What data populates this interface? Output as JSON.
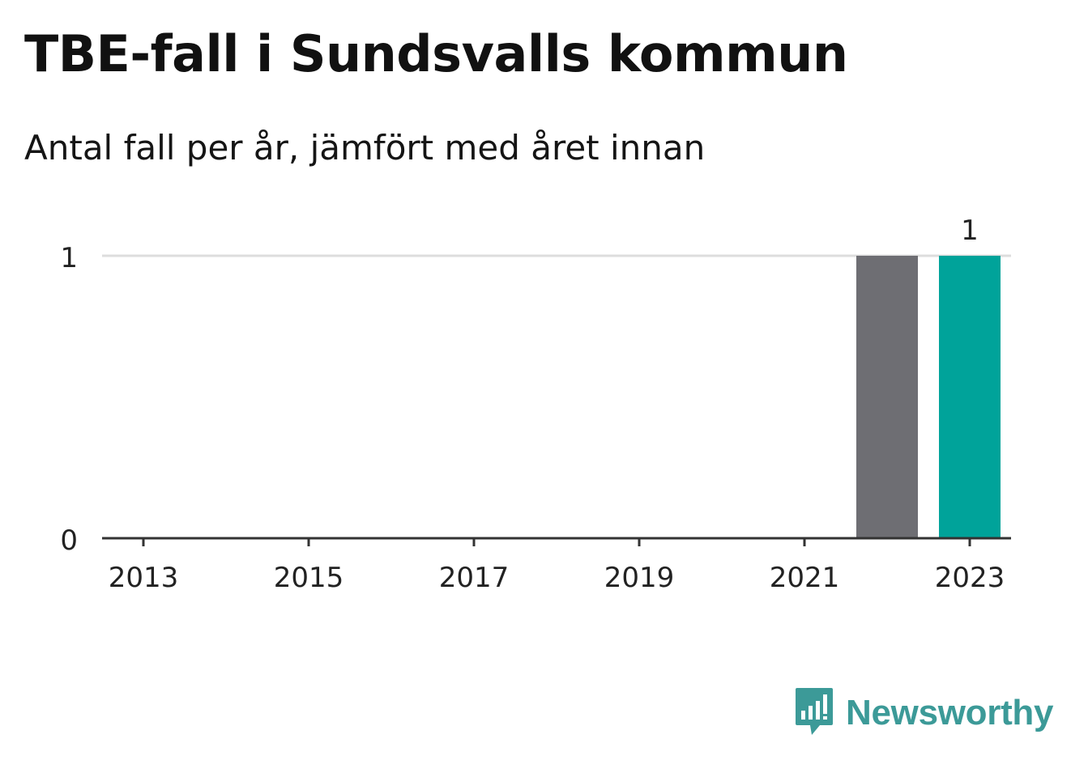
{
  "title": "TBE-fall i Sundsvalls kommun",
  "subtitle": "Antal fall per år, jämfört med året innan",
  "brand": {
    "name": "Newsworthy",
    "color": "#3c9a98"
  },
  "colors": {
    "previous_year": "#6e6e73",
    "current_year": "#00a39a",
    "gridline": "#dddddd",
    "axis": "#333333"
  },
  "chart_data": {
    "type": "bar",
    "categories": [
      "2013",
      "2014",
      "2015",
      "2016",
      "2017",
      "2018",
      "2019",
      "2020",
      "2021",
      "2022",
      "2023"
    ],
    "x_tick_labels": [
      "2013",
      "2015",
      "2017",
      "2019",
      "2021",
      "2023"
    ],
    "series": [
      {
        "values": [
          0,
          0,
          0,
          0,
          0,
          0,
          0,
          0,
          0,
          1,
          1
        ],
        "colors": [
          "#6e6e73",
          "#6e6e73",
          "#6e6e73",
          "#6e6e73",
          "#6e6e73",
          "#6e6e73",
          "#6e6e73",
          "#6e6e73",
          "#6e6e73",
          "#6e6e73",
          "#00a39a"
        ]
      }
    ],
    "data_labels": [
      {
        "category": "2023",
        "text": "1"
      }
    ],
    "y_ticks": [
      0,
      1
    ],
    "ylim": [
      0,
      1
    ],
    "xlabel": "",
    "ylabel": "",
    "grid": true,
    "legend": "none"
  }
}
